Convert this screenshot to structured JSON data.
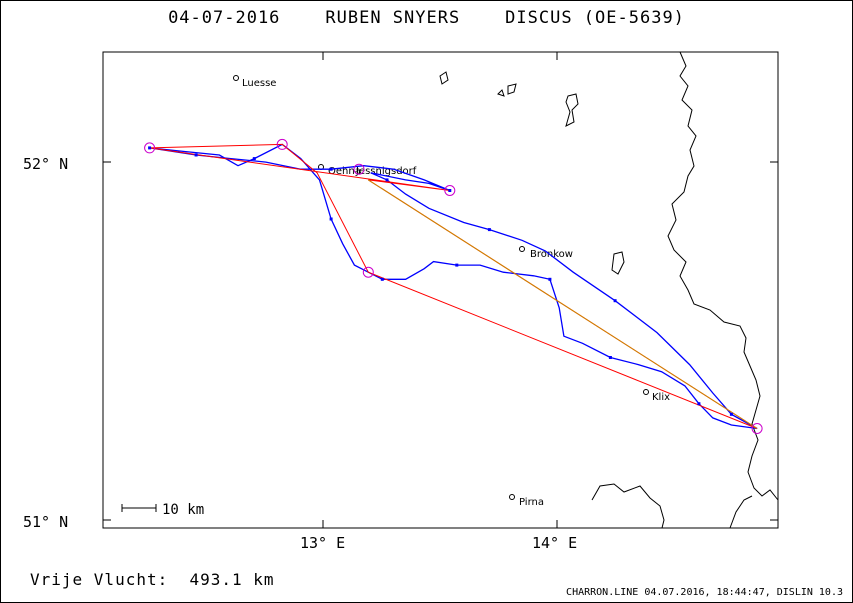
{
  "header": {
    "date": "04-07-2016",
    "pilot": "RUBEN SNYERS",
    "glider": "DISCUS (OE-5639)"
  },
  "axes": {
    "lat_labels": [
      "52° N",
      "51° N"
    ],
    "lon_labels": [
      "13° E",
      "14° E"
    ]
  },
  "places": [
    {
      "name": "Luesse",
      "lon": 12.64,
      "lat": 52.24
    },
    {
      "name": "Oehna",
      "lon": 12.99,
      "lat": 51.99
    },
    {
      "name": "Jessnigsdorf",
      "lon": 13.12,
      "lat": 51.99
    },
    {
      "name": "Bronkow",
      "lon": 13.86,
      "lat": 51.77
    },
    {
      "name": "Klix",
      "lon": 14.47,
      "lat": 51.36
    },
    {
      "name": "Pirna",
      "lon": 13.85,
      "lat": 51.07
    }
  ],
  "scale_bar": {
    "label": "10 km"
  },
  "turnpoints": [
    {
      "lon": 12.2,
      "lat": 52.05
    },
    {
      "lon": 12.77,
      "lat": 52.06
    },
    {
      "lon": 13.49,
      "lat": 51.93
    },
    {
      "lon": 13.1,
      "lat": 51.99
    },
    {
      "lon": 13.14,
      "lat": 51.7
    },
    {
      "lon": 14.81,
      "lat": 51.26
    }
  ],
  "task_polyline": [
    [
      12.2,
      52.05
    ],
    [
      12.77,
      52.06
    ],
    [
      12.92,
      51.98
    ],
    [
      13.14,
      51.7
    ],
    [
      14.81,
      51.26
    ],
    [
      13.14,
      51.96
    ],
    [
      13.49,
      51.93
    ],
    [
      12.2,
      52.05
    ]
  ],
  "leg_line": [
    [
      13.14,
      51.96
    ],
    [
      14.81,
      51.26
    ]
  ],
  "flight_track": [
    [
      12.2,
      52.05
    ],
    [
      12.35,
      52.04
    ],
    [
      12.5,
      52.03
    ],
    [
      12.58,
      52.0
    ],
    [
      12.65,
      52.02
    ],
    [
      12.77,
      52.06
    ],
    [
      12.85,
      52.02
    ],
    [
      12.93,
      51.96
    ],
    [
      12.98,
      51.85
    ],
    [
      13.03,
      51.78
    ],
    [
      13.08,
      51.72
    ],
    [
      13.14,
      51.7
    ],
    [
      13.2,
      51.68
    ],
    [
      13.3,
      51.68
    ],
    [
      13.38,
      51.71
    ],
    [
      13.42,
      51.73
    ],
    [
      13.52,
      51.72
    ],
    [
      13.62,
      51.72
    ],
    [
      13.72,
      51.7
    ],
    [
      13.85,
      51.69
    ],
    [
      13.92,
      51.68
    ],
    [
      13.96,
      51.6
    ],
    [
      13.98,
      51.52
    ],
    [
      14.06,
      51.5
    ],
    [
      14.18,
      51.46
    ],
    [
      14.3,
      51.44
    ],
    [
      14.4,
      51.42
    ],
    [
      14.5,
      51.38
    ],
    [
      14.56,
      51.33
    ],
    [
      14.62,
      51.29
    ],
    [
      14.7,
      51.27
    ],
    [
      14.81,
      51.26
    ],
    [
      14.7,
      51.3
    ],
    [
      14.62,
      51.36
    ],
    [
      14.52,
      51.44
    ],
    [
      14.38,
      51.53
    ],
    [
      14.2,
      51.62
    ],
    [
      14.02,
      51.7
    ],
    [
      13.9,
      51.76
    ],
    [
      13.8,
      51.79
    ],
    [
      13.66,
      51.82
    ],
    [
      13.55,
      51.84
    ],
    [
      13.4,
      51.88
    ],
    [
      13.3,
      51.92
    ],
    [
      13.22,
      51.96
    ],
    [
      13.15,
      51.98
    ],
    [
      13.3,
      51.96
    ],
    [
      13.4,
      51.95
    ],
    [
      13.49,
      51.93
    ],
    [
      13.38,
      51.96
    ],
    [
      13.25,
      51.99
    ],
    [
      13.12,
      52.0
    ],
    [
      12.98,
      51.99
    ],
    [
      12.85,
      51.99
    ],
    [
      12.7,
      52.01
    ],
    [
      12.55,
      52.02
    ],
    [
      12.4,
      52.03
    ],
    [
      12.2,
      52.05
    ]
  ],
  "distance": {
    "label": "Vrije Vlucht:",
    "value": "493.1 km"
  },
  "footer": "CHARRON.LINE 04.07.2016, 18:44:47, DISLIN 10.3",
  "colors": {
    "track": "#0000ff",
    "task": "#ff0000",
    "leg": "#cc8800",
    "turnpoint": "#cc00cc",
    "border": "#000000"
  },
  "map_extent": {
    "lon_min": 12.0,
    "lon_max": 14.9,
    "lat_min": 50.98,
    "lat_max": 52.32
  }
}
